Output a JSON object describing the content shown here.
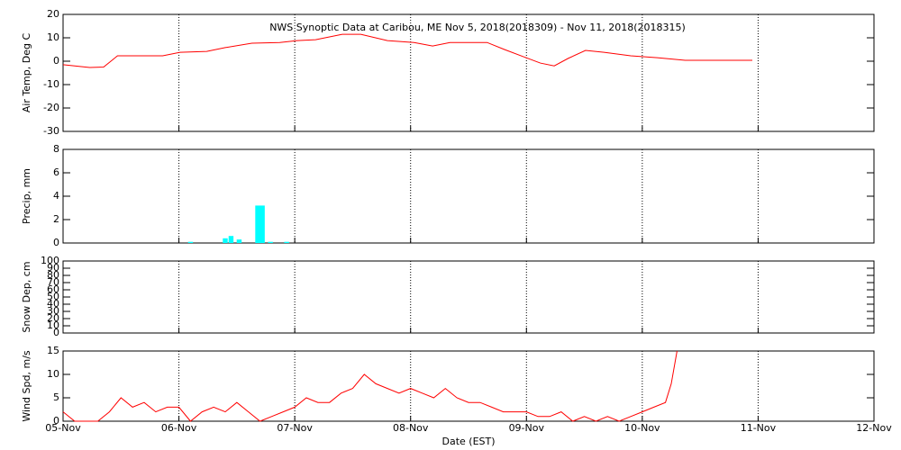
{
  "chart_data": [
    {
      "type": "line",
      "title": "NWS Synoptic Data at Caribou, ME   Nov  5, 2018(2018309) - Nov 11, 2018(2018315)",
      "ylabel": "Air Temp, Deg C",
      "color": "#ff0000",
      "x": [
        0,
        0.23,
        0.35,
        0.47,
        0.66,
        0.86,
        1.01,
        1.24,
        1.4,
        1.63,
        1.87,
        2.02,
        2.18,
        2.41,
        2.57,
        2.8,
        3.03,
        3.19,
        3.34,
        3.66,
        3.81,
        3.97,
        4.12,
        4.24,
        4.36,
        4.51,
        4.67,
        4.9,
        5.13,
        5.37,
        5.95
      ],
      "values": [
        -1.5,
        -2.7,
        -2.5,
        2.3,
        2.3,
        2.3,
        3.8,
        4.2,
        5.8,
        7.7,
        8,
        8.8,
        9.2,
        11.5,
        11.5,
        8.8,
        8,
        6.5,
        8,
        8,
        5,
        2,
        -0.8,
        -2,
        1.2,
        4.6,
        3.8,
        2.3,
        1.5,
        0.4,
        0.4
      ],
      "xlim": [
        0,
        7
      ],
      "xticks": [
        0,
        1,
        2,
        3,
        4,
        5,
        6,
        7
      ],
      "ylim": [
        -30,
        20
      ],
      "yticks": [
        -30,
        -20,
        -10,
        0,
        10,
        20
      ],
      "grid": true
    },
    {
      "type": "bar",
      "ylabel": "Precip, mm",
      "color": "#00ffff",
      "x": [
        1.1,
        1.4,
        1.45,
        1.52,
        1.68,
        1.72,
        1.79,
        1.93
      ],
      "values": [
        0.1,
        0.4,
        0.6,
        0.3,
        3.2,
        3.2,
        0.1,
        0.1
      ],
      "xlim": [
        0,
        7
      ],
      "xticks": [
        0,
        1,
        2,
        3,
        4,
        5,
        6,
        7
      ],
      "ylim": [
        0,
        8
      ],
      "yticks": [
        0,
        2,
        4,
        6,
        8
      ],
      "grid": true
    },
    {
      "type": "line",
      "ylabel": "Snow Dep, cm",
      "color": "#ff0000",
      "x": [],
      "values": [],
      "xlim": [
        0,
        7
      ],
      "xticks": [
        0,
        1,
        2,
        3,
        4,
        5,
        6,
        7
      ],
      "ylim": [
        0,
        100
      ],
      "yticks": [
        0,
        10,
        20,
        30,
        40,
        50,
        60,
        70,
        80,
        90,
        100
      ],
      "grid": true
    },
    {
      "type": "line",
      "ylabel": "Wind Spd, m/s",
      "xlabel": "Date (EST)",
      "color": "#ff0000",
      "x": [
        0,
        0.1,
        0.2,
        0.3,
        0.4,
        0.5,
        0.6,
        0.7,
        0.8,
        0.9,
        1.0,
        1.1,
        1.2,
        1.3,
        1.4,
        1.5,
        1.6,
        1.7,
        1.8,
        1.9,
        2.0,
        2.1,
        2.2,
        2.3,
        2.4,
        2.5,
        2.6,
        2.7,
        2.8,
        2.9,
        3.0,
        3.1,
        3.2,
        3.3,
        3.4,
        3.5,
        3.6,
        3.7,
        3.8,
        3.9,
        4.0,
        4.1,
        4.2,
        4.3,
        4.4,
        4.5,
        4.6,
        4.7,
        4.8,
        4.9,
        5.0,
        5.1,
        5.2,
        5.25,
        5.3
      ],
      "values": [
        2,
        0,
        0,
        0,
        2,
        5,
        3,
        4,
        2,
        3,
        3,
        0,
        2,
        3,
        2,
        4,
        2,
        0,
        1,
        2,
        3,
        5,
        4,
        4,
        6,
        7,
        10,
        8,
        7,
        6,
        7,
        6,
        5,
        7,
        5,
        4,
        4,
        3,
        2,
        2,
        2,
        1,
        1,
        2,
        0,
        1,
        0,
        1,
        0,
        1,
        2,
        3,
        4,
        8,
        15
      ],
      "xlim": [
        0,
        7
      ],
      "xticks": [
        {
          "value": 0,
          "label": "05-Nov"
        },
        {
          "value": 1,
          "label": "06-Nov"
        },
        {
          "value": 2,
          "label": "07-Nov"
        },
        {
          "value": 3,
          "label": "08-Nov"
        },
        {
          "value": 4,
          "label": "09-Nov"
        },
        {
          "value": 5,
          "label": "10-Nov"
        },
        {
          "value": 6,
          "label": "11-Nov"
        },
        {
          "value": 7,
          "label": "12-Nov"
        }
      ],
      "ylim": [
        0,
        15
      ],
      "yticks": [
        0,
        5,
        10,
        15
      ],
      "grid": true
    }
  ]
}
